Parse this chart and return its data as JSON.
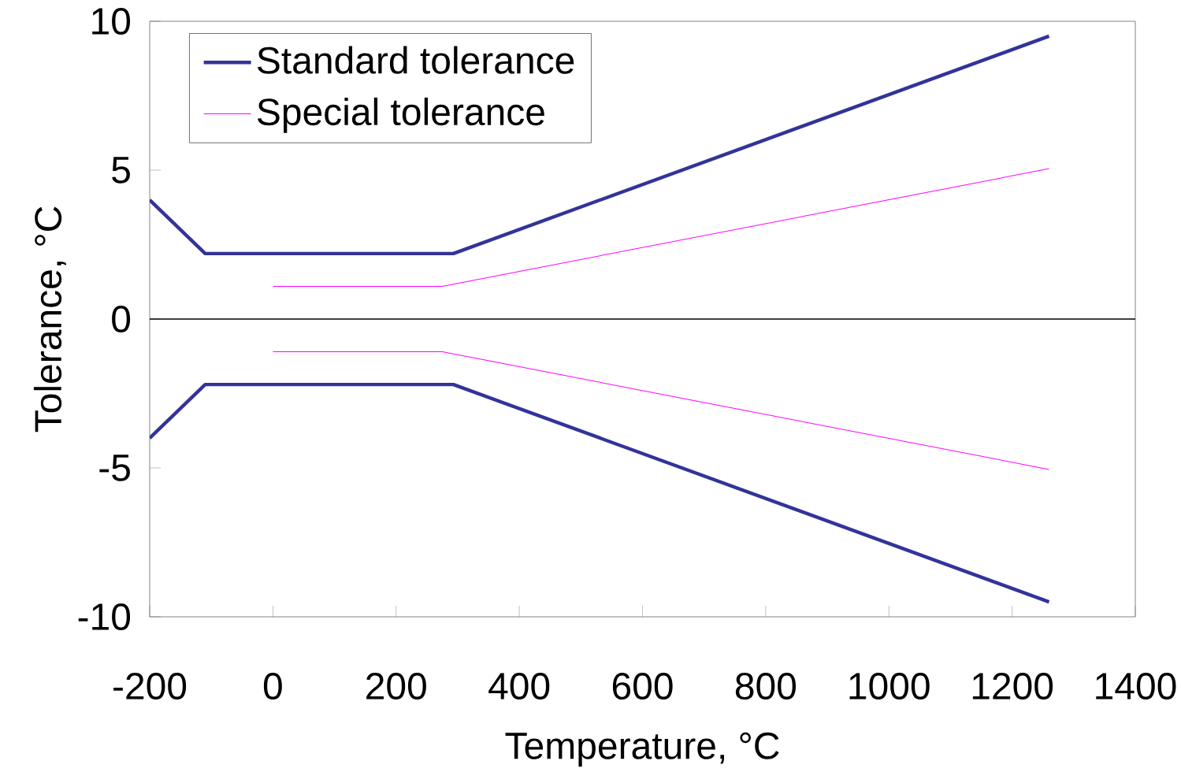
{
  "chart_data": {
    "type": "line",
    "xlabel": "Temperature, °C",
    "ylabel": "Tolerance, °C",
    "xlim": [
      -200,
      1400
    ],
    "xticks": [
      -200,
      0,
      200,
      400,
      600,
      800,
      1000,
      1200,
      1400
    ],
    "ylim": [
      -10,
      10
    ],
    "yticks": [
      -10,
      -5,
      0,
      5,
      10
    ],
    "series": [
      {
        "name": "Standard tolerance",
        "color": "#333399",
        "x": [
          -200,
          -110,
          293,
          1260
        ],
        "values": [
          4.0,
          2.2,
          2.2,
          9.5
        ]
      },
      {
        "name": "Special tolerance",
        "color": "#ff00ff",
        "x": [
          0,
          275,
          1260
        ],
        "values": [
          1.1,
          1.1,
          5.05
        ]
      },
      {
        "color": "#333399",
        "x": [
          -200,
          -110,
          293,
          1260
        ],
        "values": [
          -4.0,
          -2.2,
          -2.2,
          -9.5
        ]
      },
      {
        "color": "#ff00ff",
        "x": [
          0,
          275,
          1260
        ],
        "values": [
          -1.1,
          -1.1,
          -5.05
        ]
      }
    ],
    "ref_lines": [
      {
        "axis": "y",
        "value": 0,
        "color": "#000000"
      }
    ],
    "legend": "top left",
    "grid": false,
    "marker": "none",
    "line_style": "solid"
  }
}
